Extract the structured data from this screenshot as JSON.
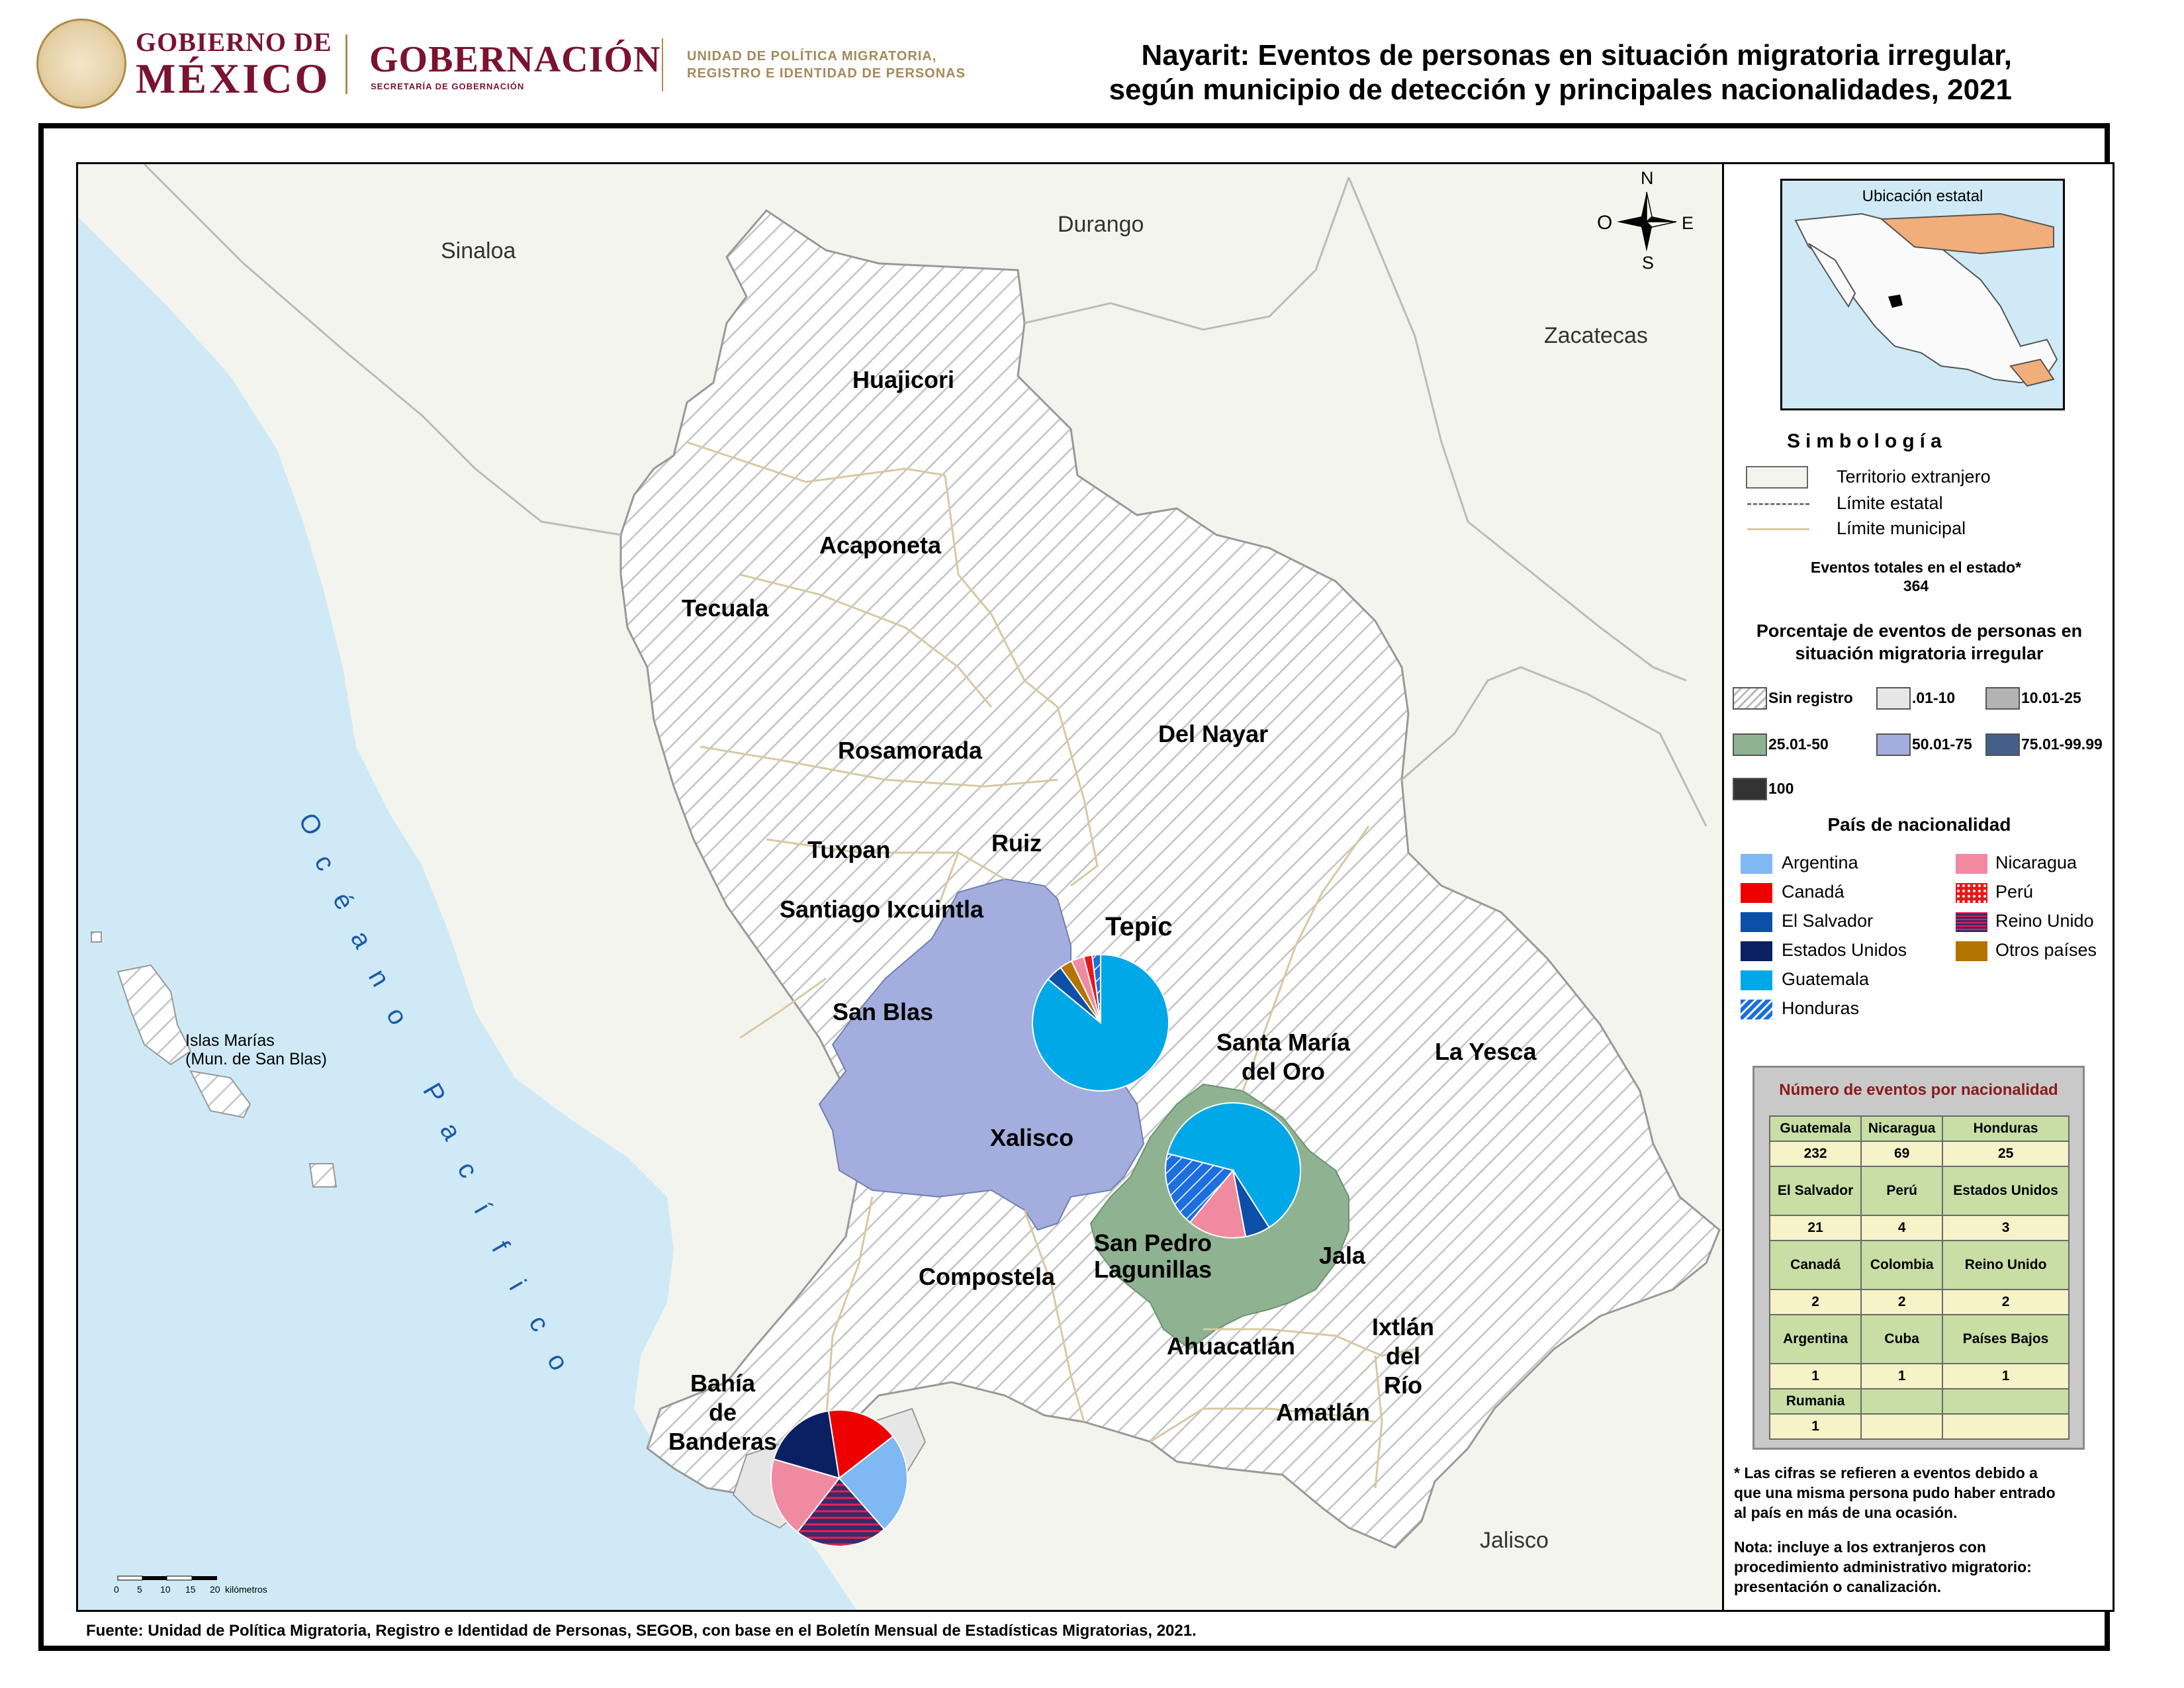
{
  "header": {
    "gobierno_line1": "GOBIERNO DE",
    "gobierno_line2": "MÉXICO",
    "gobernacion": "GOBERNACIÓN",
    "secretaria": "SECRETARÍA DE GOBERNACIÓN",
    "unidad_line1": "UNIDAD DE POLÍTICA MIGRATORIA,",
    "unidad_line2": "REGISTRO E IDENTIDAD DE PERSONAS",
    "title_line1": "Nayarit: Eventos de personas en situación migratoria irregular,",
    "title_line2": "según municipio de detección y principales nacionalidades, 2021"
  },
  "map": {
    "neighbors": {
      "sinaloa": "Sinaloa",
      "durango": "Durango",
      "zacatecas": "Zacatecas",
      "jalisco": "Jalisco"
    },
    "ocean_letters": [
      "O",
      "c",
      "é",
      "a",
      "n",
      "o",
      " ",
      "P",
      "a",
      "c",
      "í",
      "f",
      "i",
      "c",
      "o"
    ],
    "islands": {
      "line1": "Islas Marías",
      "line2": "(Mun. de San Blas)"
    },
    "compass": {
      "n": "N",
      "s": "S",
      "e": "E",
      "o": "O"
    },
    "municipalities": {
      "huajicori": "Huajicori",
      "acaponeta": "Acaponeta",
      "tecuala": "Tecuala",
      "rosamorada": "Rosamorada",
      "del_nayar": "Del Nayar",
      "tuxpan": "Tuxpan",
      "ruiz": "Ruiz",
      "santiago": "Santiago Ixcuintla",
      "tepic": "Tepic",
      "san_blas": "San Blas",
      "santa_maria_1": "Santa María",
      "santa_maria_2": "del Oro",
      "la_yesca": "La Yesca",
      "xalisco": "Xalisco",
      "compostela": "Compostela",
      "san_pedro_1": "San Pedro",
      "san_pedro_2": "Lagunillas",
      "jala": "Jala",
      "ahuacatlan": "Ahuacatlán",
      "ixtlan_1": "Ixtlán",
      "ixtlan_2": "del",
      "ixtlan_3": "Río",
      "amatlan": "Amatlán",
      "bahia_1": "Bahía",
      "bahia_2": "de",
      "bahia_3": "Banderas"
    },
    "scale": {
      "ticks": [
        "0",
        "5",
        "10",
        "15",
        "20"
      ],
      "unit": "kilómetros"
    },
    "pies": {
      "tepic": [
        0.86,
        0.04,
        0.03,
        0.03,
        0.02,
        0.02
      ],
      "santa_maria": [
        0.62,
        0.06,
        0.14,
        0.18
      ],
      "bahia": [
        0.17,
        0.24,
        0.22,
        0.19,
        0.18
      ]
    }
  },
  "legend": {
    "inset_title": "Ubicación estatal",
    "simbologia": "Simbología",
    "territorio": "Territorio extranjero",
    "limite_estatal": "Límite estatal",
    "limite_municipal": "Límite municipal",
    "eventos_label": "Eventos totales en el estado*",
    "eventos_value": "364",
    "porcentaje_line1": "Porcentaje de eventos de personas en",
    "porcentaje_line2": "situación migratoria irregular",
    "pct_classes": [
      {
        "label": "Sin registro",
        "color": "hatch"
      },
      {
        "label": ".01-10",
        "color": "#e6e6e6"
      },
      {
        "label": "10.01-25",
        "color": "#b3b3b3"
      },
      {
        "label": "25.01-50",
        "color": "#8fb391"
      },
      {
        "label": "50.01-75",
        "color": "#a3aede"
      },
      {
        "label": "75.01-99.99",
        "color": "#44608a"
      },
      {
        "label": "100",
        "color": "#333333"
      }
    ],
    "pais_title": "País de nacionalidad",
    "nationalities": [
      {
        "label": "Argentina",
        "color": "#7fb8f2"
      },
      {
        "label": "Canadá",
        "color": "#ee0000"
      },
      {
        "label": "El Salvador",
        "color": "#0b4fa8"
      },
      {
        "label": "Estados Unidos",
        "color": "#0b1f63"
      },
      {
        "label": "Guatemala",
        "color": "#00a8e8"
      },
      {
        "label": "Honduras",
        "color": "#1d6fe0"
      },
      {
        "label": "Nicaragua",
        "color": "#f08aa0"
      },
      {
        "label": "Perú",
        "color": "#e81818"
      },
      {
        "label": "Reino Unido",
        "color": "#3a2a6a"
      },
      {
        "label": "Otros países",
        "color": "#b37400"
      }
    ],
    "table_title": "Número de eventos por nacionalidad",
    "table_rows": [
      {
        "h": [
          "Guatemala",
          "Nicaragua",
          "Honduras"
        ],
        "v": [
          "232",
          "69",
          "25"
        ]
      },
      {
        "h": [
          "El Salvador",
          "Perú",
          "Estados Unidos"
        ],
        "v": [
          "21",
          "4",
          "3"
        ]
      },
      {
        "h": [
          "Canadá",
          "Colombia",
          "Reino Unido"
        ],
        "v": [
          "2",
          "2",
          "2"
        ]
      },
      {
        "h": [
          "Argentina",
          "Cuba",
          "Países Bajos"
        ],
        "v": [
          "1",
          "1",
          "1"
        ]
      },
      {
        "h": [
          "Rumania",
          "",
          ""
        ],
        "v": [
          "1",
          "",
          ""
        ]
      }
    ],
    "note1_l1": "* Las cifras se refieren a eventos debido a",
    "note1_l2": "que una misma persona pudo haber entrado",
    "note1_l3": "al país en más de una ocasión.",
    "note2_l1": "Nota: incluye a los extranjeros con",
    "note2_l2": "procedimiento administrativo migratorio:",
    "note2_l3": "presentación o canalización."
  },
  "source": "Fuente: Unidad de Política Migratoria, Registro e Identidad de Personas, SEGOB, con base en el Boletín Mensual de Estadísticas Migratorias, 2021."
}
